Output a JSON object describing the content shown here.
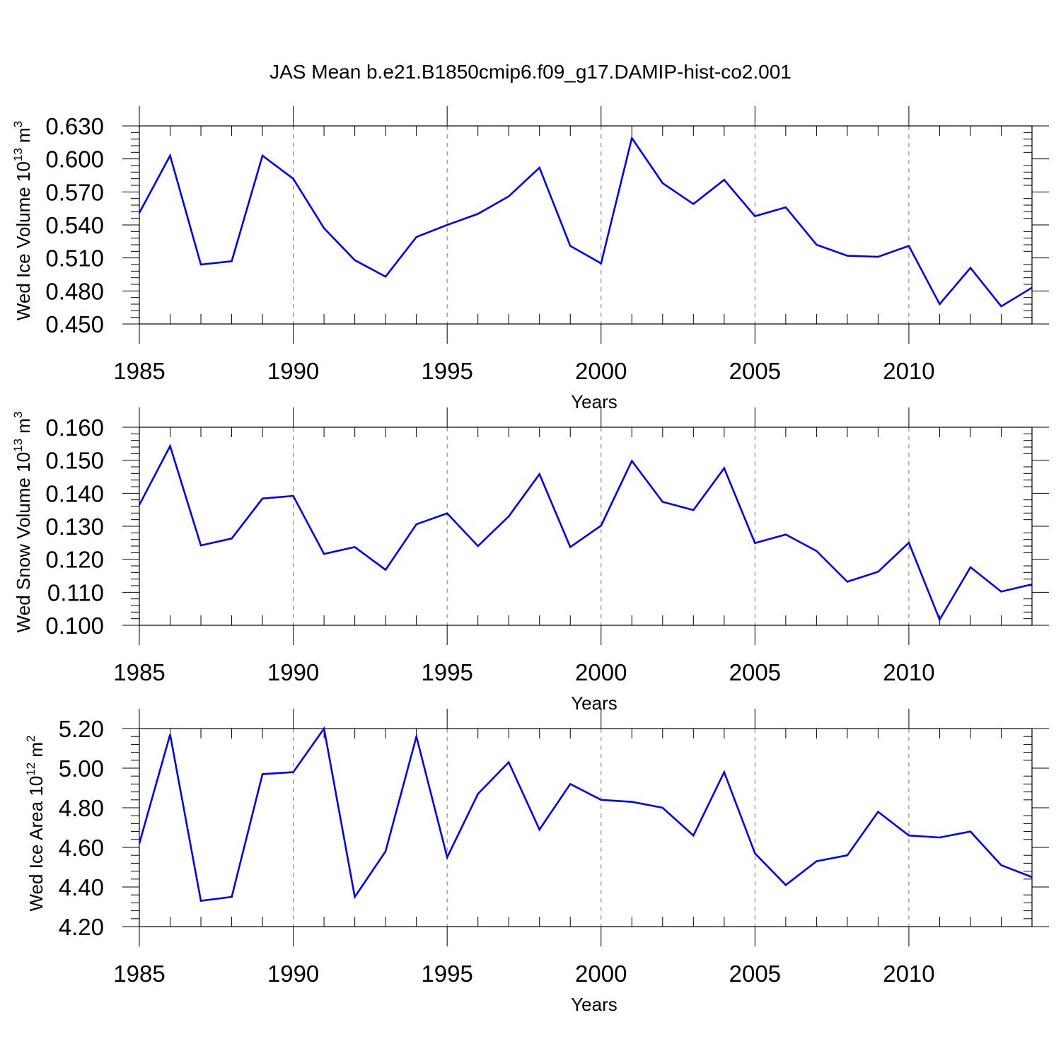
{
  "figure": {
    "title": "JAS Mean b.e21.B1850cmip6.f09_g17.DAMIP-hist-co2.001",
    "line_color": "#0000ff",
    "grid_color": "#777777"
  },
  "chart_data": [
    {
      "type": "line",
      "title": "",
      "xlabel": "Years",
      "ylabel_base": "Wed Ice Volume 10",
      "ylabel_exp": "13",
      "ylabel_unit": " m",
      "ylabel_unit_exp": "3",
      "xlim": [
        1985,
        2014
      ],
      "ylim": [
        0.45,
        0.63
      ],
      "x_ticks": [
        1985,
        1990,
        1995,
        2000,
        2005,
        2010
      ],
      "x_tick_labels": [
        "1985",
        "1990",
        "1995",
        "2000",
        "2005",
        "2010"
      ],
      "y_ticks": [
        0.45,
        0.48,
        0.51,
        0.54,
        0.57,
        0.6,
        0.63
      ],
      "y_tick_labels": [
        "0.450",
        "0.480",
        "0.510",
        "0.540",
        "0.570",
        "0.600",
        "0.630"
      ],
      "grid": "vertical dashed at major x ticks",
      "x": [
        1985,
        1986,
        1987,
        1988,
        1989,
        1990,
        1991,
        1992,
        1993,
        1994,
        1995,
        1996,
        1997,
        1998,
        1999,
        2000,
        2001,
        2002,
        2003,
        2004,
        2005,
        2006,
        2007,
        2008,
        2009,
        2010,
        2011,
        2012,
        2013,
        2014
      ],
      "series": [
        {
          "values": [
            0.551,
            0.603,
            0.504,
            0.507,
            0.603,
            0.582,
            0.537,
            0.508,
            0.493,
            0.529,
            0.54,
            0.55,
            0.566,
            0.592,
            0.521,
            0.505,
            0.619,
            0.578,
            0.559,
            0.581,
            0.548,
            0.556,
            0.522,
            0.512,
            0.511,
            0.521,
            0.468,
            0.501,
            0.466,
            0.483
          ]
        }
      ]
    },
    {
      "type": "line",
      "title": "",
      "xlabel": "Years",
      "ylabel_base": "Wed Snow Volume 10",
      "ylabel_exp": "13",
      "ylabel_unit": " m",
      "ylabel_unit_exp": "3",
      "xlim": [
        1985,
        2014
      ],
      "ylim": [
        0.1,
        0.16
      ],
      "x_ticks": [
        1985,
        1990,
        1995,
        2000,
        2005,
        2010
      ],
      "x_tick_labels": [
        "1985",
        "1990",
        "1995",
        "2000",
        "2005",
        "2010"
      ],
      "y_ticks": [
        0.1,
        0.11,
        0.12,
        0.13,
        0.14,
        0.15,
        0.16
      ],
      "y_tick_labels": [
        "0.100",
        "0.110",
        "0.120",
        "0.130",
        "0.140",
        "0.150",
        "0.160"
      ],
      "grid": "vertical dashed at major x ticks",
      "x": [
        1985,
        1986,
        1987,
        1988,
        1989,
        1990,
        1991,
        1992,
        1993,
        1994,
        1995,
        1996,
        1997,
        1998,
        1999,
        2000,
        2001,
        2002,
        2003,
        2004,
        2005,
        2006,
        2007,
        2008,
        2009,
        2010,
        2011,
        2012,
        2013,
        2014
      ],
      "series": [
        {
          "values": [
            0.1365,
            0.1543,
            0.1242,
            0.1263,
            0.1384,
            0.1392,
            0.1216,
            0.1237,
            0.1168,
            0.1306,
            0.1339,
            0.124,
            0.133,
            0.1458,
            0.1237,
            0.1302,
            0.1498,
            0.1374,
            0.1349,
            0.1476,
            0.1249,
            0.1275,
            0.1225,
            0.1132,
            0.1162,
            0.125,
            0.1017,
            0.1176,
            0.1102,
            0.1124
          ]
        }
      ]
    },
    {
      "type": "line",
      "title": "",
      "xlabel": "Years",
      "ylabel_base": "Wed Ice Area 10",
      "ylabel_exp": "12",
      "ylabel_unit": " m",
      "ylabel_unit_exp": "2",
      "xlim": [
        1985,
        2014
      ],
      "ylim": [
        4.2,
        5.2
      ],
      "x_ticks": [
        1985,
        1990,
        1995,
        2000,
        2005,
        2010
      ],
      "x_tick_labels": [
        "1985",
        "1990",
        "1995",
        "2000",
        "2005",
        "2010"
      ],
      "y_ticks": [
        4.2,
        4.4,
        4.6,
        4.8,
        5.0,
        5.2
      ],
      "y_tick_labels": [
        "4.20",
        "4.40",
        "4.60",
        "4.80",
        "5.00",
        "5.20"
      ],
      "grid": "vertical dashed at major x ticks",
      "x": [
        1985,
        1986,
        1987,
        1988,
        1989,
        1990,
        1991,
        1992,
        1993,
        1994,
        1995,
        1996,
        1997,
        1998,
        1999,
        2000,
        2001,
        2002,
        2003,
        2004,
        2005,
        2006,
        2007,
        2008,
        2009,
        2010,
        2011,
        2012,
        2013,
        2014
      ],
      "series": [
        {
          "values": [
            4.62,
            5.17,
            4.33,
            4.35,
            4.97,
            4.98,
            5.2,
            4.35,
            4.58,
            5.16,
            4.55,
            4.87,
            5.03,
            4.69,
            4.92,
            4.84,
            4.83,
            4.8,
            4.66,
            4.98,
            4.57,
            4.41,
            4.53,
            4.56,
            4.78,
            4.66,
            4.65,
            4.68,
            4.51,
            4.45
          ]
        }
      ]
    }
  ]
}
